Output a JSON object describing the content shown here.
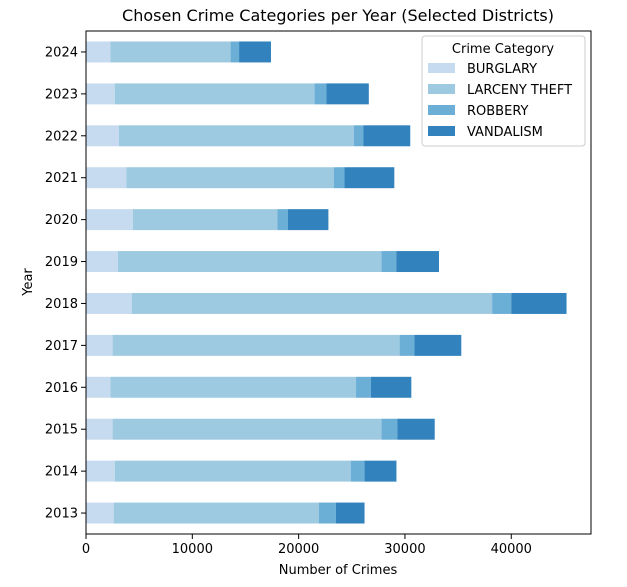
{
  "chart_data": {
    "type": "bar",
    "orientation": "horizontal",
    "stacked": true,
    "title": "Chosen Crime Categories per Year (Selected Districts)",
    "xlabel": "Number of Crimes",
    "ylabel": "Year",
    "xlim": [
      0,
      47500
    ],
    "x_ticks": [
      0,
      10000,
      20000,
      30000,
      40000
    ],
    "x_tick_labels": [
      "0",
      "10000",
      "20000",
      "30000",
      "40000"
    ],
    "grid": false,
    "categories": [
      "2013",
      "2014",
      "2015",
      "2016",
      "2017",
      "2018",
      "2019",
      "2020",
      "2021",
      "2022",
      "2023",
      "2024"
    ],
    "legend": {
      "title": "Crime Category",
      "placement": "top-right"
    },
    "series": [
      {
        "name": "BURGLARY",
        "color": "#c6dbef",
        "values": [
          2600,
          2700,
          2500,
          2300,
          2500,
          4300,
          3000,
          4400,
          3800,
          3100,
          2700,
          2300
        ]
      },
      {
        "name": "LARCENY THEFT",
        "color": "#9ecae1",
        "values": [
          19300,
          22200,
          25300,
          23100,
          27000,
          33900,
          24800,
          13600,
          19500,
          22100,
          18800,
          11300
        ]
      },
      {
        "name": "ROBBERY",
        "color": "#6baed6",
        "values": [
          1600,
          1300,
          1500,
          1400,
          1400,
          1800,
          1400,
          1000,
          1000,
          900,
          1100,
          800
        ]
      },
      {
        "name": "VANDALISM",
        "color": "#3182bd",
        "values": [
          2700,
          3000,
          3500,
          3800,
          4400,
          5200,
          4000,
          3800,
          4700,
          4400,
          4000,
          3000
        ]
      }
    ]
  }
}
